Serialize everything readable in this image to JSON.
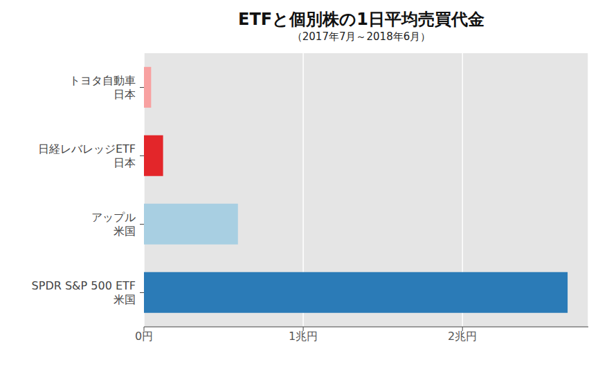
{
  "chart_data": {
    "type": "bar",
    "title": "ETFと個別株の1日平均売買代金",
    "subtitle": "（2017年7月～2018年6月）",
    "orientation": "horizontal",
    "categories": [
      "トヨタ自動車\n日本",
      "日経レバレッジETF\n日本",
      "アップル\n米国",
      "SPDR S&P 500 ETF\n米国"
    ],
    "values": [
      0.045,
      0.12,
      0.59,
      2.66
    ],
    "colors": [
      "#f8a1a1",
      "#e3262a",
      "#a8cfe2",
      "#2b7bb7"
    ],
    "xlim": [
      0,
      2.79
    ],
    "xticks": [
      {
        "value": 0,
        "label": "0円"
      },
      {
        "value": 1,
        "label": "1兆円"
      },
      {
        "value": 2,
        "label": "2兆円"
      }
    ],
    "grid": true
  }
}
